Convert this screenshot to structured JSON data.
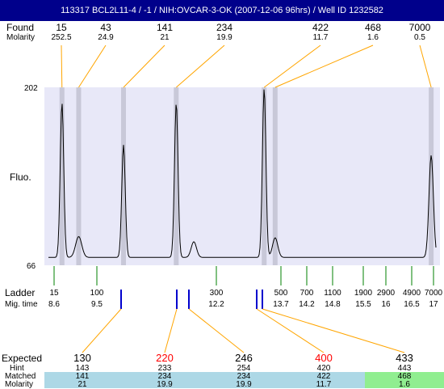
{
  "title": "113317 BCL2L11-4 / -1 / NIH:OVCAR-3-OK (2007-12-06 96hrs) / Well ID 1232582",
  "labels": {
    "found": "Found",
    "molarity": "Molarity",
    "fluo": "Fluo.",
    "ladder": "Ladder",
    "mig_time": "Mig. time",
    "expected": "Expected",
    "hint": "Hint",
    "matched": "Matched",
    "molarity_bottom": "Molarity"
  },
  "y_axis": {
    "max": "202",
    "min": "66"
  },
  "found": [
    {
      "size": "15",
      "molarity": "252.5",
      "time": 8.6
    },
    {
      "size": "43",
      "molarity": "24.9",
      "time": 8.98
    },
    {
      "size": "141",
      "molarity": "21",
      "time": 10.0
    },
    {
      "size": "234",
      "molarity": "19.9",
      "time": 11.2
    },
    {
      "size": "422",
      "molarity": "11.7",
      "time": 13.2
    },
    {
      "size": "468",
      "molarity": "1.6",
      "time": 13.45
    },
    {
      "size": "7000",
      "molarity": "0.5",
      "time": 17.0
    }
  ],
  "ladder": [
    {
      "size": "15",
      "time": "8.6"
    },
    {
      "size": "100",
      "time": "9.5"
    },
    {
      "size": "300",
      "time": "12.2"
    },
    {
      "size": "500",
      "time": "13.7"
    },
    {
      "size": "700",
      "time": "14.2"
    },
    {
      "size": "1100",
      "time": "14.8"
    },
    {
      "size": "1900",
      "time": "15.5"
    },
    {
      "size": "2900",
      "time": "16"
    },
    {
      "size": "4900",
      "time": "16.5"
    },
    {
      "size": "7000",
      "time": "17"
    }
  ],
  "expected": [
    {
      "expected": "130",
      "hint": "143",
      "matched": "141",
      "molarity": "21",
      "highlight": false,
      "status": "matched"
    },
    {
      "expected": "220",
      "hint": "233",
      "matched": "234",
      "molarity": "19.9",
      "highlight": true,
      "status": "matched"
    },
    {
      "expected": "246",
      "hint": "254",
      "matched": "234",
      "molarity": "19.9",
      "highlight": false,
      "status": "matched"
    },
    {
      "expected": "400",
      "hint": "420",
      "matched": "422",
      "molarity": "11.7",
      "highlight": true,
      "status": "matched"
    },
    {
      "expected": "433",
      "hint": "443",
      "matched": "468",
      "molarity": "1.6",
      "highlight": false,
      "status": "good"
    }
  ],
  "colors": {
    "title_bg": "#00008b",
    "plot_bg": "#e8e8f8",
    "found_band": "#c8c8d8",
    "found_line": "#ffa500",
    "ladder_tick": "#008000",
    "hint_tick": "#0000cd",
    "matched_bg": "#add8e6",
    "good_bg": "#90ee90",
    "highlight_text": "#ff0000"
  },
  "chart_data": {
    "type": "line",
    "title": "113317 BCL2L11-4 / -1 / NIH:OVCAR-3-OK (2007-12-06 96hrs) / Well ID 1232582",
    "xlabel": "Mig. time",
    "ylabel": "Fluo.",
    "xlim": [
      8.2,
      17.2
    ],
    "ylim": [
      66,
      202
    ],
    "baseline": 72,
    "peaks": [
      {
        "x": 8.6,
        "y": 190,
        "w": 0.04
      },
      {
        "x": 8.98,
        "y": 88,
        "w": 0.07
      },
      {
        "x": 10.0,
        "y": 158,
        "w": 0.04
      },
      {
        "x": 11.2,
        "y": 190,
        "w": 0.04
      },
      {
        "x": 11.6,
        "y": 84,
        "w": 0.06
      },
      {
        "x": 13.2,
        "y": 201,
        "w": 0.04
      },
      {
        "x": 13.45,
        "y": 87,
        "w": 0.06
      },
      {
        "x": 17.0,
        "y": 150,
        "w": 0.05
      }
    ]
  }
}
